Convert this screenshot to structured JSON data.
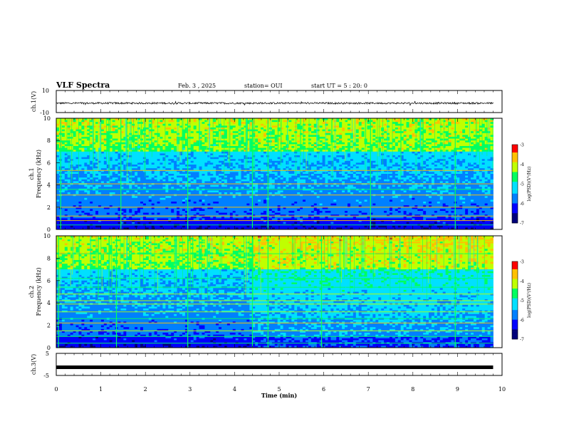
{
  "header": {
    "title": "VLF Spectra",
    "date": "Feb. 3 , 2025",
    "station": "station= OUI",
    "start": "start UT = 5 : 20: 0"
  },
  "colors": {
    "spectrogram_palette": [
      "#00007a",
      "#0000ff",
      "#0080ff",
      "#00e0ff",
      "#00ff60",
      "#c0ff00",
      "#ffc000",
      "#ff0000",
      "#ffffff"
    ],
    "waveform": "#000000"
  },
  "chart_data": [
    {
      "type": "line",
      "panel": "ch1-waveform",
      "ylabel": "ch.1(V)",
      "ylim": [
        -10,
        10
      ],
      "yticks": [
        "10",
        "-10"
      ],
      "xlim": [
        0,
        10
      ],
      "description_values": {
        "baseline": -1.5,
        "amplitude": 0.8
      },
      "x_end": 9.8
    },
    {
      "type": "heatmap",
      "panel": "ch1-spectrogram",
      "ylabel": "ch.1\nFrequency (kHz)",
      "ylim": [
        0,
        10
      ],
      "yticks": [
        "0",
        "2",
        "4",
        "6",
        "8",
        "10"
      ],
      "xlim": [
        0,
        10
      ],
      "x_end": 9.8,
      "colorbar": {
        "label": "log(PSD)(V²/Hz)",
        "min": -7,
        "max": -3,
        "ticks": [
          "-3",
          "-4",
          "-5",
          "-6",
          "-7"
        ]
      },
      "bright_bands_khz": [
        0.4,
        0.8,
        1.2,
        2.0,
        3.1,
        3.6,
        4.1,
        5.3
      ],
      "strong_events_min": [
        0.1,
        1.45,
        2.95,
        4.4,
        4.75,
        7.05,
        8.95
      ]
    },
    {
      "type": "heatmap",
      "panel": "ch2-spectrogram",
      "ylabel": "ch.2\nFrequency (kHz)",
      "ylim": [
        0,
        10
      ],
      "yticks": [
        "0",
        "2",
        "4",
        "6",
        "8",
        "10"
      ],
      "xlim": [
        0,
        10
      ],
      "x_end": 9.8,
      "colorbar": {
        "label": "log(PSD)(V²/Hz)",
        "min": -7,
        "max": -3,
        "ticks": [
          "-3",
          "-4",
          "-5",
          "-6",
          "-7"
        ]
      },
      "bright_bands_khz": [
        0.4,
        1.0,
        1.5,
        2.2,
        2.6,
        3.2,
        3.9,
        4.2,
        4.8,
        5.4,
        6.2,
        8.4,
        9.5
      ],
      "strong_events_min": [
        0.05,
        1.35,
        2.95,
        4.4,
        4.75,
        5.95,
        8.95
      ]
    },
    {
      "type": "line",
      "panel": "ch3-waveform",
      "ylabel": "ch.3(V)",
      "ylim": [
        -5,
        5
      ],
      "yticks": [
        "5",
        "-5"
      ],
      "xlim": [
        0,
        10
      ],
      "x_end": 9.8,
      "description_values": {
        "baseline": -1.3,
        "amplitude": 0.05
      },
      "xlabel": "Time (min)",
      "xticks": [
        "0",
        "1",
        "2",
        "3",
        "4",
        "5",
        "6",
        "7",
        "8",
        "9",
        "10"
      ]
    }
  ]
}
